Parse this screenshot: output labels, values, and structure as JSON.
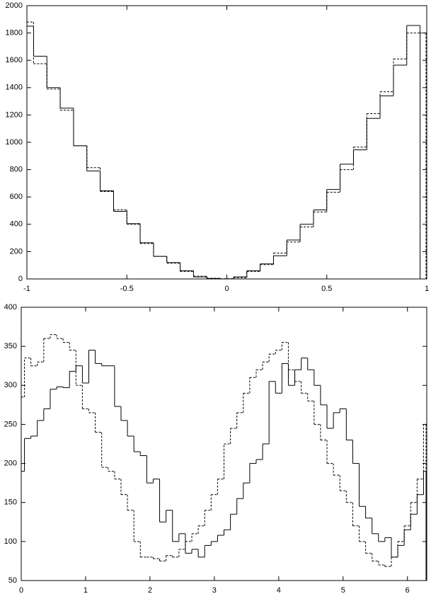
{
  "chart_data": [
    {
      "type": "step",
      "x": [
        -1,
        -0.933,
        -0.867,
        -0.8,
        -0.733,
        -0.667,
        -0.6,
        -0.533,
        -0.467,
        -0.4,
        -0.333,
        -0.267,
        -0.2,
        -0.133,
        -0.067,
        0,
        0.067,
        0.133,
        0.2,
        0.267,
        0.333,
        0.4,
        0.467,
        0.533,
        0.6,
        0.667,
        0.733,
        0.8,
        0.867,
        0.933,
        1
      ],
      "series": [
        {
          "color": "#000000",
          "line_style": "solid",
          "values": [
            1850,
            1630,
            1400,
            1250,
            975,
            790,
            645,
            495,
            405,
            265,
            165,
            120,
            60,
            15,
            3,
            0,
            15,
            60,
            110,
            170,
            285,
            400,
            505,
            655,
            840,
            945,
            1175,
            1340,
            1565,
            1855,
            0
          ]
        },
        {
          "color": "#000000",
          "line_style": "dashed",
          "values": [
            1880,
            1575,
            1390,
            1235,
            975,
            815,
            640,
            505,
            400,
            260,
            165,
            115,
            55,
            20,
            5,
            2,
            10,
            55,
            105,
            190,
            270,
            380,
            490,
            635,
            800,
            965,
            1210,
            1370,
            1610,
            1800,
            1800
          ]
        }
      ],
      "xlim": [
        -1,
        1
      ],
      "xticks": [
        -1,
        -0.5,
        0,
        0.5,
        1
      ],
      "ylim": [
        0,
        2000
      ],
      "yticks": [
        0,
        200,
        400,
        600,
        800,
        1000,
        1200,
        1400,
        1600,
        1800,
        2000
      ]
    },
    {
      "type": "step",
      "x": [
        0,
        0.1,
        0.2,
        0.3,
        0.4,
        0.5,
        0.6,
        0.7,
        0.8,
        0.9,
        1,
        1.1,
        1.2,
        1.3,
        1.4,
        1.5,
        1.6,
        1.7,
        1.8,
        1.9,
        2,
        2.1,
        2.2,
        2.3,
        2.4,
        2.5,
        2.6,
        2.7,
        2.8,
        2.9,
        3,
        3.1,
        3.2,
        3.3,
        3.4,
        3.5,
        3.6,
        3.7,
        3.8,
        3.9,
        4,
        4.1,
        4.2,
        4.3,
        4.4,
        4.5,
        4.6,
        4.7,
        4.8,
        4.9,
        5,
        5.1,
        5.2,
        5.3,
        5.4,
        5.5,
        5.6,
        5.7,
        5.8,
        5.9,
        6,
        6.1,
        6.2,
        6.3
      ],
      "series": [
        {
          "color": "#000000",
          "line_style": "solid",
          "values": [
            190,
            232,
            235,
            255,
            270,
            295,
            298,
            297,
            318,
            325,
            303,
            345,
            328,
            325,
            325,
            273,
            255,
            235,
            215,
            210,
            175,
            180,
            125,
            140,
            100,
            110,
            85,
            90,
            80,
            95,
            100,
            108,
            115,
            135,
            155,
            175,
            200,
            205,
            225,
            305,
            290,
            328,
            300,
            320,
            335,
            320,
            300,
            275,
            245,
            265,
            270,
            230,
            200,
            145,
            130,
            110,
            100,
            105,
            80,
            95,
            115,
            135,
            160,
            190
          ]
        },
        {
          "color": "#000000",
          "line_style": "dashed",
          "values": [
            285,
            335,
            325,
            330,
            360,
            365,
            360,
            355,
            345,
            300,
            270,
            265,
            240,
            195,
            190,
            180,
            160,
            140,
            100,
            80,
            80,
            78,
            75,
            82,
            80,
            90,
            100,
            110,
            120,
            140,
            160,
            180,
            225,
            245,
            265,
            290,
            310,
            320,
            330,
            340,
            345,
            355,
            320,
            305,
            290,
            280,
            250,
            230,
            200,
            185,
            165,
            150,
            120,
            100,
            85,
            75,
            70,
            68,
            80,
            100,
            120,
            150,
            180,
            250
          ]
        }
      ],
      "xlim": [
        0,
        6.3
      ],
      "xticks": [
        0,
        1,
        2,
        3,
        4,
        5,
        6
      ],
      "ylim": [
        50,
        400
      ],
      "yticks": [
        50,
        100,
        150,
        200,
        250,
        300,
        350,
        400
      ]
    }
  ]
}
